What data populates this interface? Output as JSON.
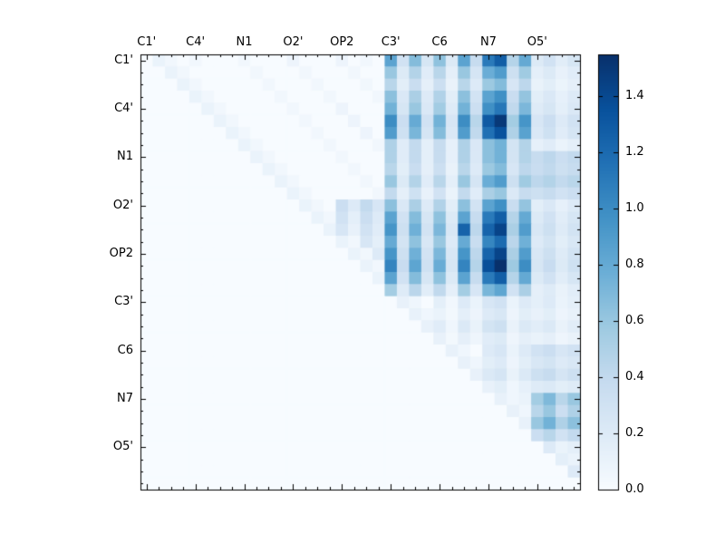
{
  "figure": {
    "background": "#ffffff",
    "axis_color": "#000000"
  },
  "chart_data": {
    "type": "heatmap",
    "title": "",
    "xlabel": "",
    "ylabel": "",
    "axis_labels": [
      "C1'",
      "C4'",
      "N1",
      "O2'",
      "OP2",
      "C3'",
      "C6",
      "N7",
      "O5'"
    ],
    "group_size": 4,
    "n": 36,
    "vmin": 0.0,
    "vmax": 1.55,
    "colormap": {
      "name": "Blues",
      "anchors": [
        "#f7fbff",
        "#deebf7",
        "#c6dbef",
        "#9ecae1",
        "#6baed6",
        "#4292c6",
        "#2171b5",
        "#08519c",
        "#08306b"
      ]
    },
    "colorbar": {
      "position": "right",
      "ticks": [
        0.0,
        0.2,
        0.4,
        0.6,
        0.8,
        1.0,
        1.2,
        1.4
      ],
      "tick_labels": [
        "0.0",
        "0.2",
        "0.4",
        "0.6",
        "0.8",
        "1.0",
        "1.2",
        "1.4"
      ]
    },
    "matrix": [
      [
        0,
        0.1,
        0.05,
        0,
        0.05,
        0,
        0,
        0,
        0.05,
        0,
        0,
        0,
        0.08,
        0,
        0,
        0,
        0.08,
        0,
        0.05,
        0,
        0.85,
        0.3,
        0.68,
        0.26,
        0.64,
        0.21,
        0.85,
        0.38,
        1.11,
        1.28,
        0.47,
        0.81,
        0.21,
        0.3,
        0.17,
        0.26
      ],
      [
        0,
        0,
        0.1,
        0.05,
        0,
        0,
        0,
        0,
        0,
        0.05,
        0,
        0,
        0,
        0.05,
        0,
        0,
        0,
        0.05,
        0,
        0,
        0.6,
        0.21,
        0.48,
        0.18,
        0.45,
        0.15,
        0.6,
        0.27,
        0.78,
        0.9,
        0.33,
        0.57,
        0.15,
        0.21,
        0.12,
        0.18
      ],
      [
        0,
        0,
        0,
        0.1,
        0.05,
        0,
        0,
        0,
        0,
        0,
        0.05,
        0,
        0,
        0,
        0.05,
        0,
        0,
        0,
        0.05,
        0,
        0.45,
        0.16,
        0.36,
        0.14,
        0.34,
        0.11,
        0.45,
        0.2,
        0.59,
        0.68,
        0.25,
        0.43,
        0.11,
        0.16,
        0.09,
        0.14
      ],
      [
        0,
        0,
        0,
        0,
        0.1,
        0.05,
        0,
        0,
        0,
        0,
        0,
        0.05,
        0,
        0,
        0,
        0.05,
        0,
        0,
        0,
        0.05,
        0.65,
        0.23,
        0.52,
        0.2,
        0.49,
        0.16,
        0.65,
        0.29,
        0.85,
        0.98,
        0.36,
        0.62,
        0.16,
        0.23,
        0.13,
        0.2
      ],
      [
        0,
        0,
        0,
        0,
        0,
        0.1,
        0.05,
        0,
        0,
        0,
        0,
        0,
        0.05,
        0,
        0,
        0,
        0.08,
        0,
        0,
        0,
        0.75,
        0.26,
        0.6,
        0.23,
        0.56,
        0.19,
        0.75,
        0.34,
        0.98,
        1.13,
        0.41,
        0.71,
        0.19,
        0.26,
        0.15,
        0.23
      ],
      [
        0,
        0,
        0,
        0,
        0,
        0,
        0.1,
        0.05,
        0,
        0,
        0,
        0,
        0,
        0.05,
        0,
        0,
        0,
        0.08,
        0,
        0,
        1.0,
        0.35,
        0.8,
        0.3,
        0.75,
        0.25,
        1.0,
        0.45,
        1.3,
        1.5,
        0.55,
        0.95,
        0.25,
        0.35,
        0.2,
        0.3
      ],
      [
        0,
        0,
        0,
        0,
        0,
        0,
        0,
        0.1,
        0.05,
        0,
        0,
        0,
        0,
        0,
        0.05,
        0,
        0,
        0,
        0.08,
        0,
        0.9,
        0.32,
        0.72,
        0.27,
        0.68,
        0.23,
        0.9,
        0.41,
        1.17,
        1.35,
        0.5,
        0.86,
        0.23,
        0.32,
        0.18,
        0.27
      ],
      [
        0,
        0,
        0,
        0,
        0,
        0,
        0,
        0,
        0.1,
        0.05,
        0,
        0,
        0,
        0,
        0,
        0.05,
        0,
        0,
        0,
        0.05,
        0.5,
        0.18,
        0.4,
        0.15,
        0.38,
        0.13,
        0.5,
        0.23,
        0.65,
        0.75,
        0.28,
        0.48,
        0.13,
        0.18,
        0.1,
        0.15
      ],
      [
        0,
        0,
        0,
        0,
        0,
        0,
        0,
        0,
        0,
        0.1,
        0.05,
        0,
        0,
        0,
        0,
        0,
        0.05,
        0,
        0,
        0,
        0.5,
        0.18,
        0.4,
        0.15,
        0.38,
        0.13,
        0.5,
        0.23,
        0.65,
        0.75,
        0.28,
        0.48,
        0.38,
        0.43,
        0.35,
        0.4
      ],
      [
        0,
        0,
        0,
        0,
        0,
        0,
        0,
        0,
        0,
        0,
        0.1,
        0.05,
        0,
        0,
        0,
        0,
        0,
        0.05,
        0,
        0,
        0.45,
        0.16,
        0.36,
        0.14,
        0.34,
        0.11,
        0.45,
        0.2,
        0.59,
        0.68,
        0.25,
        0.43,
        0.36,
        0.41,
        0.33,
        0.38
      ],
      [
        0,
        0,
        0,
        0,
        0,
        0,
        0,
        0,
        0,
        0,
        0,
        0.1,
        0.05,
        0,
        0,
        0,
        0,
        0,
        0.05,
        0,
        0.6,
        0.21,
        0.48,
        0.18,
        0.45,
        0.15,
        0.6,
        0.27,
        0.78,
        0.9,
        0.33,
        0.57,
        0.43,
        0.48,
        0.4,
        0.45
      ],
      [
        0,
        0,
        0,
        0,
        0,
        0,
        0,
        0,
        0,
        0,
        0,
        0,
        0.1,
        0.05,
        0,
        0,
        0,
        0,
        0,
        0.05,
        0.4,
        0.14,
        0.32,
        0.12,
        0.3,
        0.1,
        0.4,
        0.18,
        0.52,
        0.6,
        0.22,
        0.38,
        0.33,
        0.38,
        0.3,
        0.35
      ],
      [
        0,
        0,
        0,
        0,
        0,
        0,
        0,
        0,
        0,
        0,
        0,
        0,
        0,
        0.1,
        0.05,
        0,
        0.35,
        0.2,
        0.4,
        0.25,
        0.65,
        0.23,
        0.52,
        0.2,
        0.49,
        0.16,
        0.65,
        0.29,
        0.85,
        0.98,
        0.36,
        0.62,
        0.16,
        0.23,
        0.13,
        0.2
      ],
      [
        0,
        0,
        0,
        0,
        0,
        0,
        0,
        0,
        0,
        0,
        0,
        0,
        0,
        0,
        0.1,
        0.05,
        0.3,
        0.15,
        0.35,
        0.2,
        0.85,
        0.3,
        0.68,
        0.26,
        0.64,
        0.21,
        0.85,
        0.38,
        1.11,
        1.28,
        0.47,
        0.81,
        0.21,
        0.3,
        0.17,
        0.26
      ],
      [
        0,
        0,
        0,
        0,
        0,
        0,
        0,
        0,
        0,
        0,
        0,
        0,
        0,
        0,
        0,
        0.1,
        0.25,
        0.12,
        0.3,
        0.18,
        0.95,
        0.33,
        0.76,
        0.29,
        0.71,
        0.24,
        1.25,
        0.43,
        1.24,
        1.43,
        0.52,
        0.9,
        0.24,
        0.33,
        0.19,
        0.29
      ],
      [
        0,
        0,
        0,
        0,
        0,
        0,
        0,
        0,
        0,
        0,
        0,
        0,
        0,
        0,
        0,
        0,
        0.1,
        0.05,
        0.25,
        0.15,
        0.8,
        0.28,
        0.64,
        0.24,
        0.6,
        0.2,
        0.8,
        0.36,
        1.04,
        1.2,
        0.44,
        0.76,
        0.2,
        0.28,
        0.16,
        0.24
      ],
      [
        0,
        0,
        0,
        0,
        0,
        0,
        0,
        0,
        0,
        0,
        0,
        0,
        0,
        0,
        0,
        0,
        0,
        0.1,
        0.05,
        0.2,
        0.95,
        0.33,
        0.76,
        0.29,
        0.71,
        0.24,
        0.95,
        0.43,
        1.24,
        1.43,
        0.52,
        0.9,
        0.24,
        0.33,
        0.19,
        0.29
      ],
      [
        0,
        0,
        0,
        0,
        0,
        0,
        0,
        0,
        0,
        0,
        0,
        0,
        0,
        0,
        0,
        0,
        0,
        0,
        0.1,
        0.05,
        1.05,
        0.37,
        0.84,
        0.32,
        0.79,
        0.26,
        1.05,
        0.47,
        1.37,
        1.55,
        0.58,
        1.0,
        0.26,
        0.37,
        0.21,
        0.32
      ],
      [
        0,
        0,
        0,
        0,
        0,
        0,
        0,
        0,
        0,
        0,
        0,
        0,
        0,
        0,
        0,
        0,
        0,
        0,
        0,
        0.1,
        0.85,
        0.3,
        0.68,
        0.26,
        0.64,
        0.21,
        0.85,
        0.38,
        1.11,
        1.28,
        0.47,
        0.81,
        0.21,
        0.3,
        0.17,
        0.26
      ],
      [
        0,
        0,
        0,
        0,
        0,
        0,
        0,
        0,
        0,
        0,
        0,
        0,
        0,
        0,
        0,
        0,
        0,
        0,
        0,
        0,
        0.55,
        0.19,
        0.44,
        0.17,
        0.41,
        0.14,
        0.55,
        0.25,
        0.72,
        0.83,
        0.3,
        0.52,
        0.14,
        0.19,
        0.11,
        0.17
      ],
      [
        0,
        0,
        0,
        0,
        0,
        0,
        0,
        0,
        0,
        0,
        0,
        0,
        0,
        0,
        0,
        0,
        0,
        0,
        0,
        0,
        0,
        0.12,
        0.06,
        0,
        0.15,
        0.05,
        0.2,
        0.1,
        0.25,
        0.3,
        0.1,
        0.2,
        0.15,
        0.2,
        0.1,
        0.15
      ],
      [
        0,
        0,
        0,
        0,
        0,
        0,
        0,
        0,
        0,
        0,
        0,
        0,
        0,
        0,
        0,
        0,
        0,
        0,
        0,
        0,
        0,
        0,
        0.12,
        0.06,
        0.1,
        0.04,
        0.15,
        0.08,
        0.2,
        0.24,
        0.08,
        0.16,
        0.12,
        0.16,
        0.08,
        0.12
      ],
      [
        0,
        0,
        0,
        0,
        0,
        0,
        0,
        0,
        0,
        0,
        0,
        0,
        0,
        0,
        0,
        0,
        0,
        0,
        0,
        0,
        0,
        0,
        0,
        0.12,
        0.18,
        0.06,
        0.22,
        0.11,
        0.28,
        0.33,
        0.11,
        0.22,
        0.17,
        0.22,
        0.11,
        0.17
      ],
      [
        0,
        0,
        0,
        0,
        0,
        0,
        0,
        0,
        0,
        0,
        0,
        0,
        0,
        0,
        0,
        0,
        0,
        0,
        0,
        0,
        0,
        0,
        0,
        0,
        0.12,
        0.04,
        0.14,
        0.07,
        0.18,
        0.21,
        0.07,
        0.14,
        0.11,
        0.14,
        0.07,
        0.11
      ],
      [
        0,
        0,
        0,
        0,
        0,
        0,
        0,
        0,
        0,
        0,
        0,
        0,
        0,
        0,
        0,
        0,
        0,
        0,
        0,
        0,
        0,
        0,
        0,
        0,
        0,
        0.12,
        0.06,
        0,
        0.2,
        0.25,
        0.1,
        0.2,
        0.3,
        0.35,
        0.25,
        0.3
      ],
      [
        0,
        0,
        0,
        0,
        0,
        0,
        0,
        0,
        0,
        0,
        0,
        0,
        0,
        0,
        0,
        0,
        0,
        0,
        0,
        0,
        0,
        0,
        0,
        0,
        0,
        0,
        0.12,
        0.06,
        0.16,
        0.2,
        0.08,
        0.16,
        0.24,
        0.28,
        0.2,
        0.24
      ],
      [
        0,
        0,
        0,
        0,
        0,
        0,
        0,
        0,
        0,
        0,
        0,
        0,
        0,
        0,
        0,
        0,
        0,
        0,
        0,
        0,
        0,
        0,
        0,
        0,
        0,
        0,
        0,
        0.12,
        0.22,
        0.27,
        0.11,
        0.22,
        0.33,
        0.38,
        0.27,
        0.33
      ],
      [
        0,
        0,
        0,
        0,
        0,
        0,
        0,
        0,
        0,
        0,
        0,
        0,
        0,
        0,
        0,
        0,
        0,
        0,
        0,
        0,
        0,
        0,
        0,
        0,
        0,
        0,
        0,
        0,
        0.12,
        0.16,
        0.06,
        0.13,
        0.19,
        0.22,
        0.16,
        0.19
      ],
      [
        0,
        0,
        0,
        0,
        0,
        0,
        0,
        0,
        0,
        0,
        0,
        0,
        0,
        0,
        0,
        0,
        0,
        0,
        0,
        0,
        0,
        0,
        0,
        0,
        0,
        0,
        0,
        0,
        0,
        0.12,
        0.06,
        0.1,
        0.55,
        0.7,
        0.45,
        0.6
      ],
      [
        0,
        0,
        0,
        0,
        0,
        0,
        0,
        0,
        0,
        0,
        0,
        0,
        0,
        0,
        0,
        0,
        0,
        0,
        0,
        0,
        0,
        0,
        0,
        0,
        0,
        0,
        0,
        0,
        0,
        0,
        0.12,
        0.06,
        0.45,
        0.6,
        0.35,
        0.5
      ],
      [
        0,
        0,
        0,
        0,
        0,
        0,
        0,
        0,
        0,
        0,
        0,
        0,
        0,
        0,
        0,
        0,
        0,
        0,
        0,
        0,
        0,
        0,
        0,
        0,
        0,
        0,
        0,
        0,
        0,
        0,
        0,
        0.12,
        0.6,
        0.75,
        0.5,
        0.65
      ],
      [
        0,
        0,
        0,
        0,
        0,
        0,
        0,
        0,
        0,
        0,
        0,
        0,
        0,
        0,
        0,
        0,
        0,
        0,
        0,
        0,
        0,
        0,
        0,
        0,
        0,
        0,
        0,
        0,
        0,
        0,
        0,
        0,
        0.35,
        0.45,
        0.3,
        0.4
      ],
      [
        0,
        0,
        0,
        0,
        0,
        0,
        0,
        0,
        0,
        0,
        0,
        0,
        0,
        0,
        0,
        0,
        0,
        0,
        0,
        0,
        0,
        0,
        0,
        0,
        0,
        0,
        0,
        0,
        0,
        0,
        0,
        0,
        0,
        0.2,
        0.1,
        0.15
      ],
      [
        0,
        0,
        0,
        0,
        0,
        0,
        0,
        0,
        0,
        0,
        0,
        0,
        0,
        0,
        0,
        0,
        0,
        0,
        0,
        0,
        0,
        0,
        0,
        0,
        0,
        0,
        0,
        0,
        0,
        0,
        0,
        0,
        0,
        0,
        0.15,
        0.1
      ],
      [
        0,
        0,
        0,
        0,
        0,
        0,
        0,
        0,
        0,
        0,
        0,
        0,
        0,
        0,
        0,
        0,
        0,
        0,
        0,
        0,
        0,
        0,
        0,
        0,
        0,
        0,
        0,
        0,
        0,
        0,
        0,
        0,
        0,
        0,
        0,
        0.2
      ],
      [
        0,
        0,
        0,
        0,
        0,
        0,
        0,
        0,
        0,
        0,
        0,
        0,
        0,
        0,
        0,
        0,
        0,
        0,
        0,
        0,
        0,
        0,
        0,
        0,
        0,
        0,
        0,
        0,
        0,
        0,
        0,
        0,
        0,
        0,
        0,
        0
      ]
    ]
  }
}
